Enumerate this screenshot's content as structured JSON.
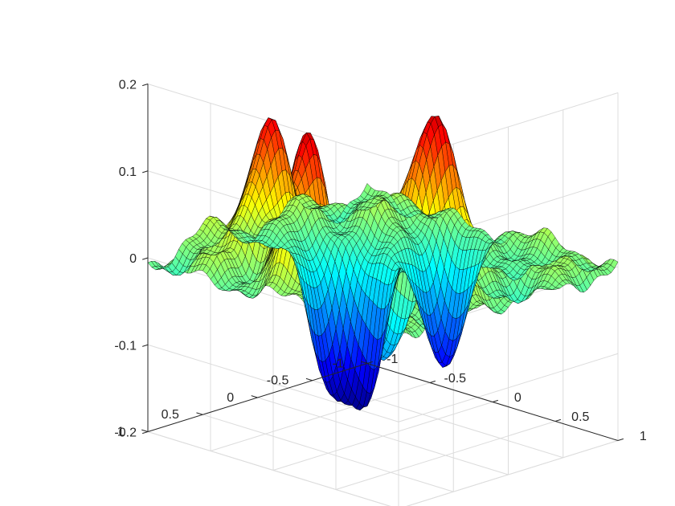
{
  "chart_data": {
    "type": "surface",
    "title": "",
    "xlabel": "",
    "ylabel": "",
    "zlabel": "",
    "xlim": [
      -1,
      1
    ],
    "ylim": [
      -1,
      1
    ],
    "zlim": [
      -0.2,
      0.2
    ],
    "x_ticks": [
      "-1",
      "-0.5",
      "0",
      "0.5",
      "1"
    ],
    "y_ticks": [
      "-1",
      "-0.5",
      "0",
      "0.5",
      "1"
    ],
    "z_ticks": [
      "-0.2",
      "-0.1",
      "0",
      "0.1",
      "0.2"
    ],
    "grid": true,
    "colormap": "jet",
    "edge_color": "#000000",
    "box_color": "#262626",
    "grid_color": "#dcdcdc",
    "peaks": [
      {
        "x": -0.55,
        "y": 0.45,
        "z": 0.19
      },
      {
        "x": -0.05,
        "y": 0.65,
        "z": 0.2
      },
      {
        "x": 0.25,
        "y": -0.15,
        "z": 0.18
      },
      {
        "x": 0.6,
        "y": 0.25,
        "z": 0.19
      }
    ],
    "troughs": [
      {
        "x": -0.35,
        "y": -0.25,
        "z": -0.19
      },
      {
        "x": -0.55,
        "y": -0.1,
        "z": -0.17
      },
      {
        "x": -0.1,
        "y": -0.7,
        "z": -0.2
      },
      {
        "x": 0.3,
        "y": 0.3,
        "z": -0.12
      }
    ]
  }
}
